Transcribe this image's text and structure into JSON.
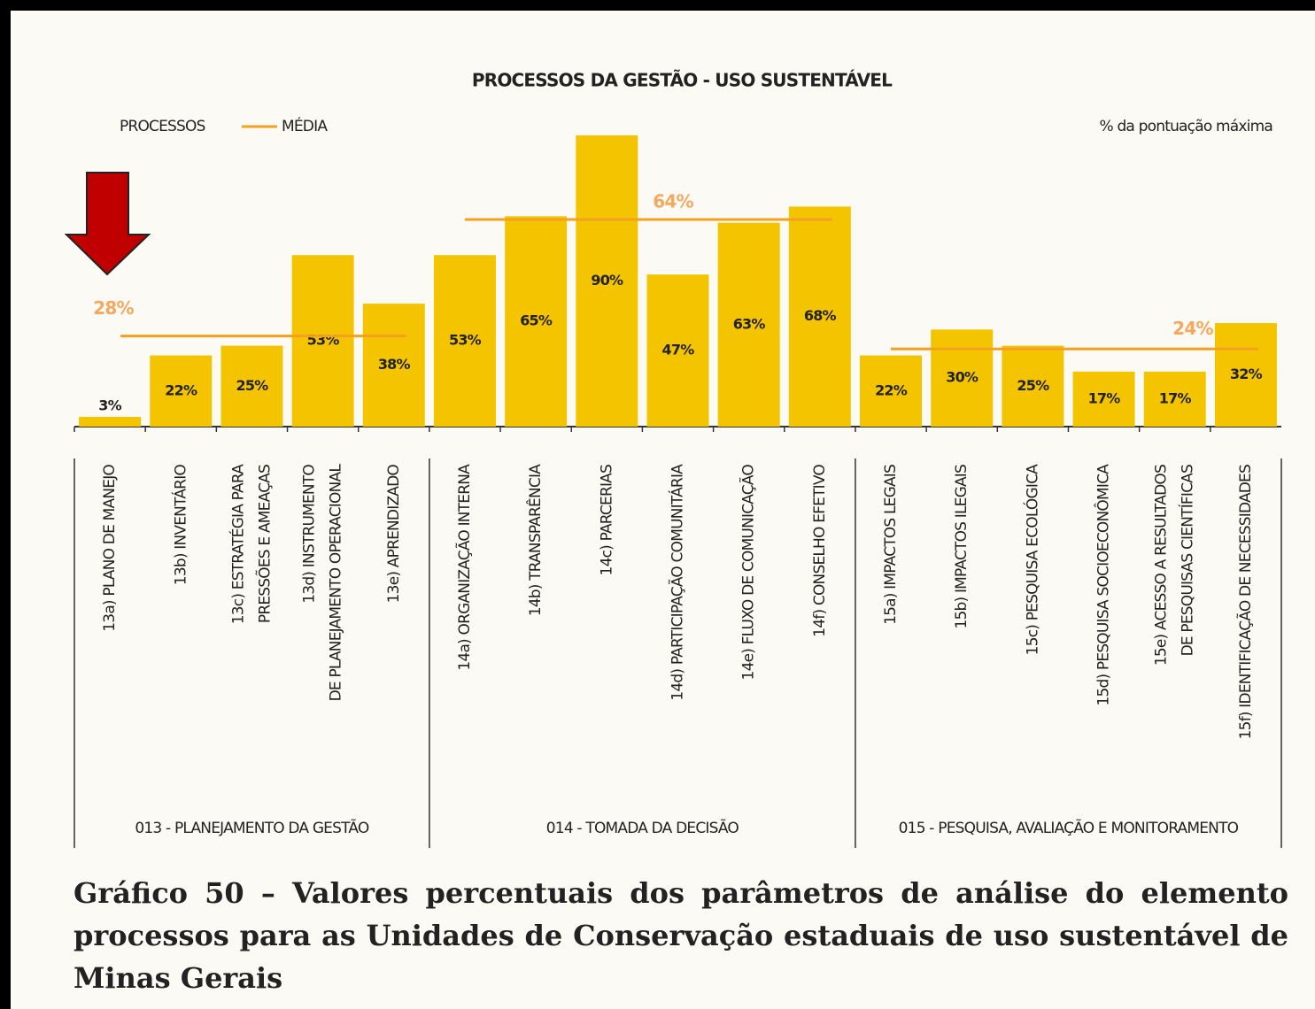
{
  "chart_data": {
    "type": "bar",
    "title": "PROCESSOS DA GESTÃO - USO SUSTENTÁVEL",
    "series_name": "PROCESSOS",
    "mean_name": "MÉDIA",
    "y_label": "% da pontuação máxima",
    "color": "#f5c400",
    "mean_color": "#f4a020",
    "ylim": [
      0,
      100
    ],
    "groups": [
      {
        "name": "013 - PLANEJAMENTO DA GESTÃO",
        "mean": 28,
        "mean_label": "28%",
        "categories": [
          "13a) PLANO DE MANEJO",
          "13b) INVENTÁRIO",
          "13c) ESTRATÉGIA PARA\nPRESSÕES E AMEAÇAS",
          "13d) INSTRUMENTO\nDE PLANEJAMENTO OPERACIONAL",
          "13e) APRENDIZADO"
        ],
        "values": [
          3,
          22,
          25,
          53,
          38
        ],
        "value_labels": [
          "3%",
          "22%",
          "25%",
          "53%",
          "38%"
        ]
      },
      {
        "name": "014 - TOMADA DA DECISÃO",
        "mean": 64,
        "mean_label": "64%",
        "categories": [
          "14a) ORGANIZAÇÃO INTERNA",
          "14b) TRANSPARÊNCIA",
          "14c) PARCERIAS",
          "14d) PARTICIPAÇÃO COMUNITÁRIA",
          "14e) FLUXO DE COMUNICAÇÃO",
          "14f) CONSELHO EFETIVO"
        ],
        "values": [
          53,
          65,
          90,
          47,
          63,
          68
        ],
        "value_labels": [
          "53%",
          "65%",
          "90%",
          "47%",
          "63%",
          "68%"
        ]
      },
      {
        "name": "015 - PESQUISA, AVALIAÇÃO E MONITORAMENTO",
        "mean": 24,
        "mean_label": "24%",
        "categories": [
          "15a) IMPACTOS LEGAIS",
          "15b) IMPACTOS ILEGAIS",
          "15c) PESQUISA ECOLÓGICA",
          "15d) PESQUISA SOCIOECONÔMICA",
          "15e) ACESSO A RESULTADOS\nDE PESQUISAS CIENTÍFICAS",
          "15f) IDENTIFICAÇÃO DE NECESSIDADES"
        ],
        "values": [
          22,
          30,
          25,
          17,
          17,
          32
        ],
        "value_labels": [
          "22%",
          "30%",
          "25%",
          "17%",
          "17%",
          "32%"
        ]
      }
    ]
  },
  "caption": "Gráfico 50 – Valores percentuais dos parâmetros de análise do elemento processos para as Unidades de Conservação estaduais de uso sustentável de Minas Gerais"
}
